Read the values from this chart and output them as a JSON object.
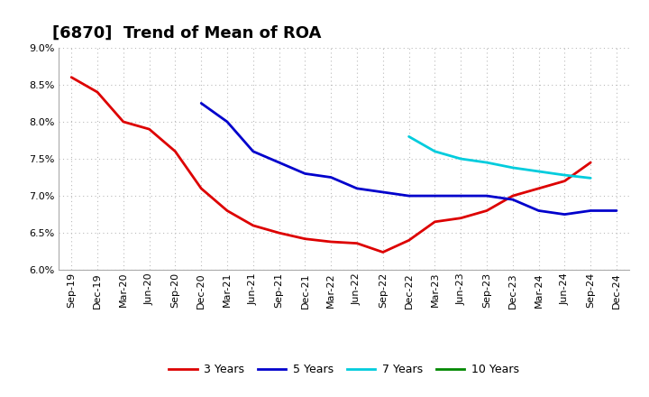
{
  "title": "[6870]  Trend of Mean of ROA",
  "ylim": [
    0.06,
    0.09
  ],
  "yticks": [
    0.06,
    0.065,
    0.07,
    0.075,
    0.08,
    0.085,
    0.09
  ],
  "background_color": "#ffffff",
  "grid_color": "#bbbbbb",
  "series": {
    "3 Years": {
      "color": "#dd0000",
      "x": [
        "Sep-19",
        "Dec-19",
        "Mar-20",
        "Jun-20",
        "Sep-20",
        "Dec-20",
        "Mar-21",
        "Jun-21",
        "Sep-21",
        "Dec-21",
        "Mar-22",
        "Jun-22",
        "Sep-22",
        "Dec-22",
        "Mar-23",
        "Jun-23",
        "Sep-23",
        "Dec-23",
        "Mar-24",
        "Jun-24",
        "Sep-24"
      ],
      "y": [
        0.086,
        0.084,
        0.08,
        0.079,
        0.076,
        0.071,
        0.068,
        0.066,
        0.065,
        0.0642,
        0.0638,
        0.0636,
        0.0624,
        0.064,
        0.0665,
        0.067,
        0.068,
        0.07,
        0.071,
        0.072,
        0.0745
      ]
    },
    "5 Years": {
      "color": "#0000cc",
      "x": [
        "Dec-20",
        "Mar-21",
        "Jun-21",
        "Sep-21",
        "Dec-21",
        "Mar-22",
        "Jun-22",
        "Sep-22",
        "Dec-22",
        "Mar-23",
        "Jun-23",
        "Sep-23",
        "Dec-23",
        "Mar-24",
        "Jun-24",
        "Sep-24",
        "Dec-24"
      ],
      "y": [
        0.0825,
        0.08,
        0.076,
        0.0745,
        0.073,
        0.0725,
        0.071,
        0.0705,
        0.07,
        0.07,
        0.07,
        0.07,
        0.0695,
        0.068,
        0.0675,
        0.068,
        0.068
      ]
    },
    "7 Years": {
      "color": "#00ccdd",
      "x": [
        "Dec-22",
        "Mar-23",
        "Jun-23",
        "Sep-23",
        "Dec-23",
        "Mar-24",
        "Jun-24",
        "Sep-24"
      ],
      "y": [
        0.078,
        0.076,
        0.075,
        0.0745,
        0.0738,
        0.0733,
        0.0728,
        0.0724
      ]
    },
    "10 Years": {
      "color": "#008800",
      "x": [],
      "y": []
    }
  },
  "xtick_labels": [
    "Sep-19",
    "Dec-19",
    "Mar-20",
    "Jun-20",
    "Sep-20",
    "Dec-20",
    "Mar-21",
    "Jun-21",
    "Sep-21",
    "Dec-21",
    "Mar-22",
    "Jun-22",
    "Sep-22",
    "Dec-22",
    "Mar-23",
    "Jun-23",
    "Sep-23",
    "Dec-23",
    "Mar-24",
    "Jun-24",
    "Sep-24",
    "Dec-24"
  ],
  "legend_order": [
    "3 Years",
    "5 Years",
    "7 Years",
    "10 Years"
  ],
  "title_fontsize": 13,
  "tick_fontsize": 8,
  "linewidth": 2.0
}
